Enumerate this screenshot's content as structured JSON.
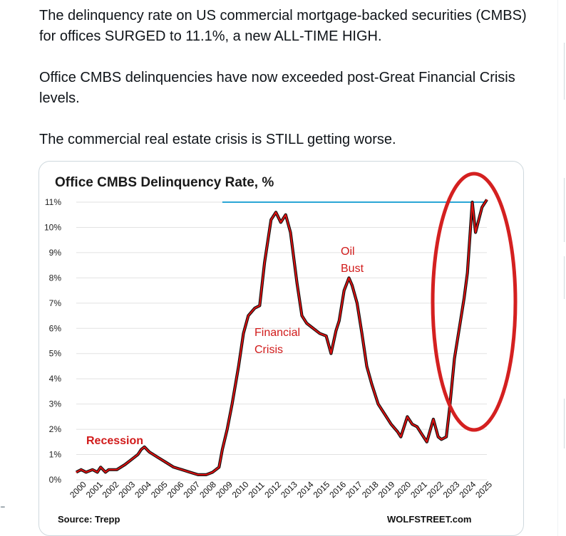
{
  "tweet": {
    "paragraphs": [
      "The delinquency rate on US commercial mortgage-backed securities (CMBS) for offices SURGED to 11.1%, a new ALL-TIME HIGH.",
      "Office CMBS delinquencies have now exceeded post-Great Financial Crisis levels.",
      "The commercial real estate crisis is STILL getting worse."
    ],
    "overflow_dots": "..."
  },
  "chart": {
    "source": "Source: Trepp",
    "brand": "WOLFSTREET.com",
    "annotations": {
      "recession": "Recession",
      "financial_line1": "Financial",
      "financial_line2": "Crisis",
      "oil_line1": "Oil",
      "oil_line2": "Bust"
    }
  },
  "colors": {
    "series": "#e01010",
    "series_outline": "#111111",
    "ath_line": "#2aa6d6",
    "highlight_ellipse": "#d42020",
    "grid": "#e2e2e2"
  },
  "chart_data": {
    "type": "line",
    "title": "Office CMBS Delinquency Rate, %",
    "xlabel": "",
    "ylabel": "",
    "ylim": [
      0,
      11
    ],
    "y_ticks": [
      "0%",
      "1%",
      "2%",
      "3%",
      "4%",
      "5%",
      "6%",
      "7%",
      "8%",
      "9%",
      "10%",
      "11%"
    ],
    "x_ticks": [
      "2000",
      "2001",
      "2002",
      "2003",
      "2004",
      "2005",
      "2006",
      "2007",
      "2008",
      "2009",
      "2010",
      "2011",
      "2012",
      "2013",
      "2014",
      "2015",
      "2016",
      "2017",
      "2018",
      "2019",
      "2020",
      "2021",
      "2022",
      "2023",
      "2024",
      "2025"
    ],
    "grid": true,
    "series": [
      {
        "x": [
          2000.0,
          2000.3,
          2000.6,
          2001.0,
          2001.3,
          2001.5,
          2001.8,
          2002.0,
          2002.5,
          2003.0,
          2003.4,
          2003.8,
          2004.0,
          2004.2,
          2004.5,
          2005.0,
          2005.5,
          2006.0,
          2006.5,
          2007.0,
          2007.5,
          2008.0,
          2008.4,
          2008.8,
          2009.0,
          2009.3,
          2009.6,
          2010.0,
          2010.3,
          2010.6,
          2011.0,
          2011.3,
          2011.6,
          2012.0,
          2012.3,
          2012.6,
          2012.9,
          2013.2,
          2013.6,
          2013.9,
          2014.2,
          2014.6,
          2015.0,
          2015.4,
          2015.7,
          2016.0,
          2016.2,
          2016.5,
          2016.8,
          2017.0,
          2017.3,
          2017.6,
          2017.9,
          2018.2,
          2018.6,
          2019.0,
          2019.4,
          2019.8,
          2020.0,
          2020.4,
          2020.7,
          2021.0,
          2021.3,
          2021.6,
          2022.0,
          2022.3,
          2022.5,
          2022.8,
          2023.0,
          2023.3,
          2023.6,
          2023.9,
          2024.1,
          2024.4,
          2024.6,
          2024.8,
          2025.0,
          2025.3
        ],
        "y": [
          0.3,
          0.4,
          0.3,
          0.4,
          0.3,
          0.5,
          0.3,
          0.4,
          0.4,
          0.6,
          0.8,
          1.0,
          1.2,
          1.3,
          1.1,
          0.9,
          0.7,
          0.5,
          0.4,
          0.3,
          0.2,
          0.2,
          0.3,
          0.5,
          1.2,
          2.0,
          3.0,
          4.5,
          5.8,
          6.5,
          6.8,
          6.9,
          8.6,
          10.3,
          10.6,
          10.2,
          10.5,
          9.8,
          7.8,
          6.5,
          6.2,
          6.0,
          5.8,
          5.7,
          5.0,
          5.9,
          6.3,
          7.5,
          8.0,
          7.7,
          7.0,
          5.8,
          4.5,
          3.8,
          3.0,
          2.6,
          2.2,
          1.9,
          1.7,
          2.5,
          2.2,
          2.1,
          1.8,
          1.5,
          2.4,
          1.7,
          1.6,
          1.7,
          2.8,
          4.8,
          6.0,
          7.2,
          8.2,
          11.0,
          9.8,
          10.3,
          10.8,
          11.1
        ]
      }
    ],
    "annotations": [
      "Recession",
      "Financial Crisis",
      "Oil Bust"
    ],
    "legend": "none"
  }
}
